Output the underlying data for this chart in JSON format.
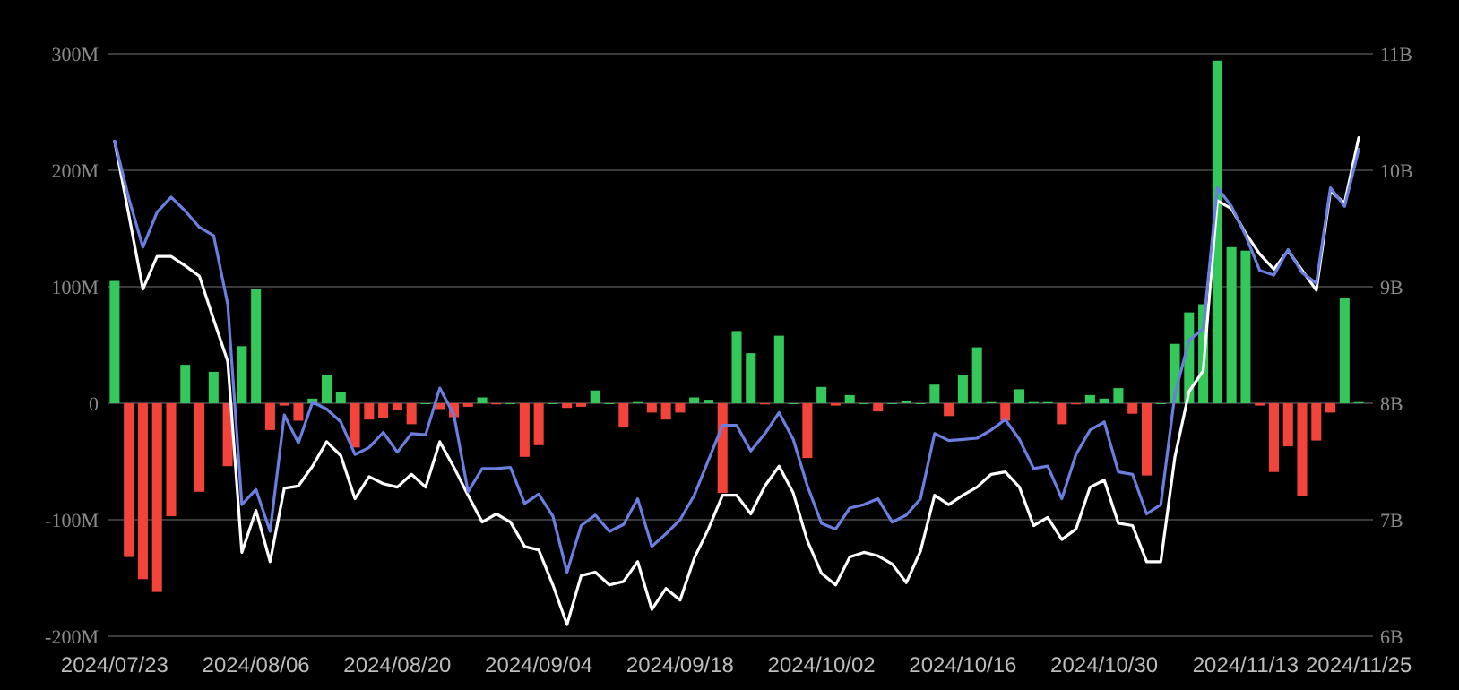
{
  "chart_data": {
    "type": "bar",
    "categories": [
      "2024/07/23",
      null,
      null,
      null,
      null,
      null,
      null,
      null,
      null,
      null,
      "2024/08/06",
      null,
      null,
      null,
      null,
      null,
      null,
      null,
      null,
      null,
      "2024/08/20",
      null,
      null,
      null,
      null,
      null,
      null,
      null,
      null,
      null,
      "2024/09/04",
      null,
      null,
      null,
      null,
      null,
      null,
      null,
      null,
      null,
      "2024/09/18",
      null,
      null,
      null,
      null,
      null,
      null,
      null,
      null,
      null,
      "2024/10/02",
      null,
      null,
      null,
      null,
      null,
      null,
      null,
      null,
      null,
      "2024/10/16",
      null,
      null,
      null,
      null,
      null,
      null,
      null,
      null,
      null,
      "2024/10/30",
      null,
      null,
      null,
      null,
      null,
      null,
      null,
      null,
      null,
      "2024/11/13",
      null,
      null,
      null,
      null,
      null,
      null,
      null,
      "2024/11/25"
    ],
    "series": [
      {
        "values": [
          105,
          -132,
          -151,
          -162,
          -97,
          33,
          -76,
          27,
          -54,
          49,
          98,
          -23,
          -2,
          -15,
          4,
          24,
          10,
          -38,
          -14,
          -13,
          -6,
          -18,
          0,
          -5,
          -12,
          -3,
          5,
          -1,
          0,
          -46,
          -36,
          0,
          -4,
          -3,
          11,
          0,
          -20,
          1,
          -8,
          -14,
          -8,
          5,
          3,
          -77,
          62,
          43,
          -1,
          58,
          0,
          -47,
          14,
          -2,
          7,
          0,
          -7,
          0,
          2,
          0,
          16,
          -11,
          24,
          48,
          1,
          -15,
          12,
          1,
          1,
          -18,
          -1,
          7,
          4,
          13,
          -9,
          -62,
          0,
          51,
          78,
          85,
          294,
          134,
          131,
          -2,
          -59,
          -37,
          -80,
          -32,
          -8,
          90,
          1
        ],
        "colors": [
          "#34c759",
          "#f2443a",
          "#f2443a",
          "#f2443a",
          "#f2443a",
          "#34c759",
          "#f2443a",
          "#34c759",
          "#f2443a",
          "#34c759",
          "#34c759",
          "#f2443a",
          "#f2443a",
          "#f2443a",
          "#34c759",
          "#34c759",
          "#34c759",
          "#f2443a",
          "#f2443a",
          "#f2443a",
          "#f2443a",
          "#f2443a",
          "#34c759",
          "#f2443a",
          "#f2443a",
          "#f2443a",
          "#34c759",
          "#f2443a",
          "#34c759",
          "#f2443a",
          "#f2443a",
          "#34c759",
          "#f2443a",
          "#f2443a",
          "#34c759",
          "#34c759",
          "#f2443a",
          "#34c759",
          "#f2443a",
          "#f2443a",
          "#f2443a",
          "#34c759",
          "#34c759",
          "#f2443a",
          "#34c759",
          "#34c759",
          "#f2443a",
          "#34c759",
          "#34c759",
          "#f2443a",
          "#34c759",
          "#f2443a",
          "#34c759",
          "#34c759",
          "#f2443a",
          "#34c759",
          "#34c759",
          "#34c759",
          "#34c759",
          "#f2443a",
          "#34c759",
          "#34c759",
          "#34c759",
          "#f2443a",
          "#34c759",
          "#34c759",
          "#34c759",
          "#f2443a",
          "#f2443a",
          "#34c759",
          "#34c759",
          "#34c759",
          "#f2443a",
          "#f2443a",
          "#34c759",
          "#34c759",
          "#34c759",
          "#34c759",
          "#34c759",
          "#34c759",
          "#34c759",
          "#f2443a",
          "#f2443a",
          "#f2443a",
          "#f2443a",
          "#f2443a",
          "#f2443a",
          "#34c759",
          "#34c759"
        ]
      },
      {
        "type": "line",
        "axis": "y2",
        "color": "#ffffff",
        "values": [
          10.25,
          9.62,
          8.98,
          9.26,
          9.26,
          9.18,
          9.09,
          8.72,
          8.36,
          6.72,
          7.08,
          6.64,
          7.27,
          7.29,
          7.46,
          7.67,
          7.55,
          7.18,
          7.37,
          7.31,
          7.28,
          7.39,
          7.28,
          7.67,
          7.45,
          7.21,
          6.98,
          7.05,
          6.98,
          6.77,
          6.74,
          6.44,
          6.1,
          6.52,
          6.55,
          6.44,
          6.47,
          6.64,
          6.23,
          6.41,
          6.31,
          6.67,
          6.92,
          7.21,
          7.21,
          7.05,
          7.29,
          7.46,
          7.23,
          6.82,
          6.54,
          6.44,
          6.68,
          6.72,
          6.69,
          6.62,
          6.46,
          6.73,
          7.21,
          7.13,
          7.21,
          7.28,
          7.39,
          7.41,
          7.28,
          6.95,
          7.02,
          6.83,
          6.92,
          7.28,
          7.34,
          6.97,
          6.95,
          6.64,
          6.64,
          7.54,
          8.1,
          8.28,
          9.74,
          9.67,
          9.46,
          9.28,
          9.15,
          9.31,
          9.14,
          8.97,
          9.82,
          9.72,
          10.28
        ]
      },
      {
        "type": "line",
        "axis": "y2",
        "color": "#6b7fe0",
        "values": [
          10.25,
          9.76,
          9.34,
          9.64,
          9.77,
          9.65,
          9.51,
          9.44,
          8.85,
          7.13,
          7.26,
          6.9,
          7.9,
          7.66,
          8.01,
          7.95,
          7.84,
          7.56,
          7.62,
          7.75,
          7.58,
          7.74,
          7.73,
          8.13,
          7.9,
          7.24,
          7.44,
          7.44,
          7.45,
          7.14,
          7.22,
          7.03,
          6.55,
          6.95,
          7.04,
          6.9,
          6.96,
          7.18,
          6.77,
          6.88,
          7.0,
          7.21,
          7.51,
          7.81,
          7.81,
          7.59,
          7.74,
          7.92,
          7.69,
          7.29,
          6.97,
          6.92,
          7.1,
          7.13,
          7.18,
          6.98,
          7.04,
          7.18,
          7.74,
          7.68,
          7.69,
          7.7,
          7.77,
          7.86,
          7.69,
          7.44,
          7.46,
          7.18,
          7.56,
          7.77,
          7.84,
          7.41,
          7.39,
          7.05,
          7.13,
          8.08,
          8.54,
          8.64,
          9.85,
          9.69,
          9.44,
          9.14,
          9.1,
          9.32,
          9.12,
          9.03,
          9.85,
          9.69,
          10.18
        ]
      }
    ],
    "ylim": [
      -200,
      300
    ],
    "yticks": [
      {
        "value": -200,
        "label": "-200M"
      },
      {
        "value": -100,
        "label": "-100M"
      },
      0,
      {
        "value": 100,
        "label": "100M"
      },
      {
        "value": 200,
        "label": "200M"
      },
      {
        "value": 300,
        "label": "300M"
      }
    ],
    "y2lim": [
      6,
      11
    ],
    "y2ticks": [
      {
        "value": 6,
        "label": "6B"
      },
      {
        "value": 7,
        "label": "7B"
      },
      {
        "value": 8,
        "label": "8B"
      },
      {
        "value": 9,
        "label": "9B"
      },
      {
        "value": 10,
        "label": "10B"
      },
      {
        "value": 11,
        "label": "11B"
      }
    ],
    "grid": "y"
  }
}
